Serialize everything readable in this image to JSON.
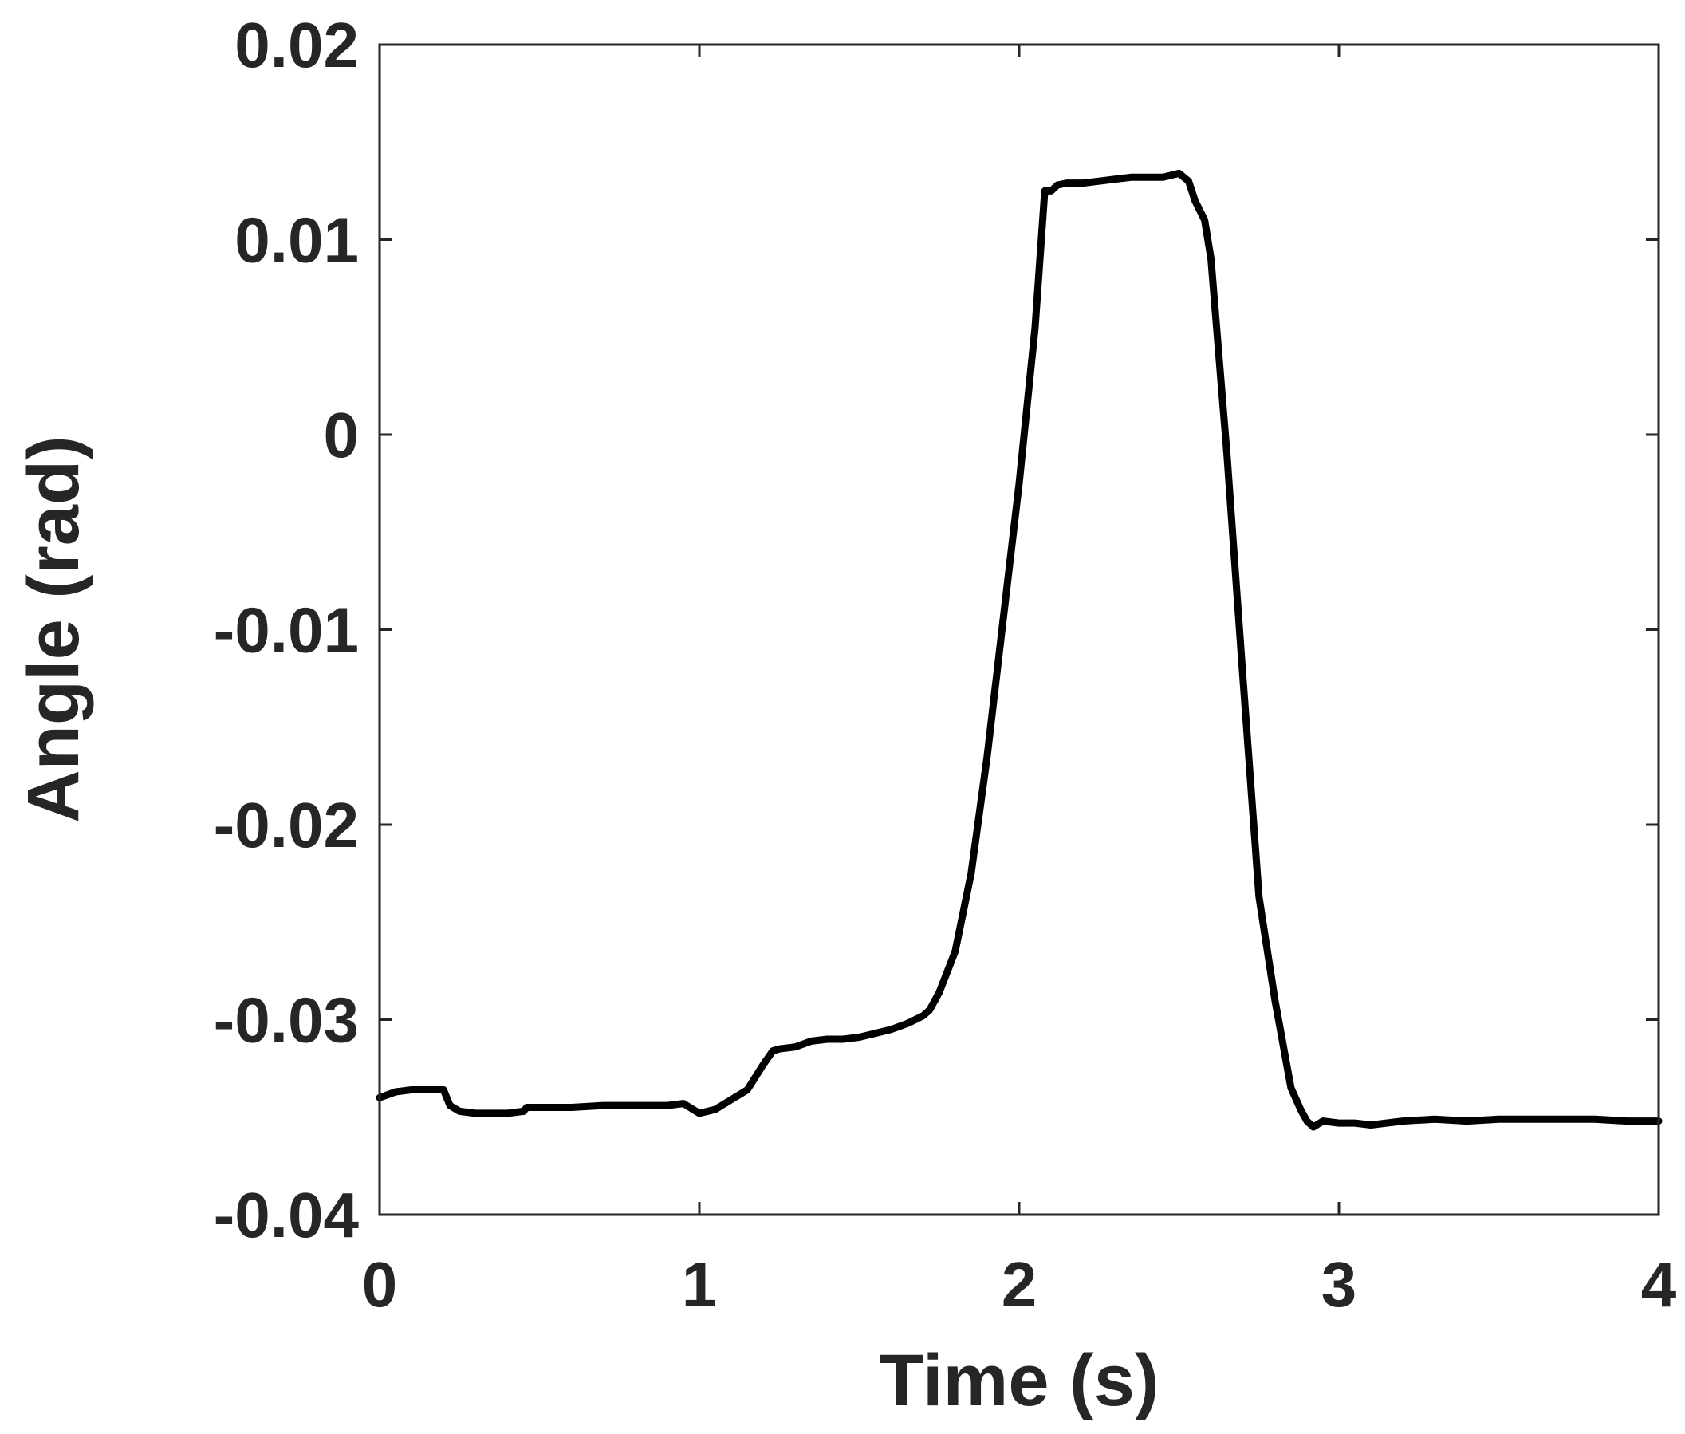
{
  "chart_data": {
    "type": "line",
    "title": "",
    "xlabel": "Time (s)",
    "ylabel": "Angle (rad)",
    "xlim": [
      0,
      4
    ],
    "ylim": [
      -0.04,
      0.02
    ],
    "xticks": [
      "0",
      "1",
      "2",
      "3",
      "4"
    ],
    "yticks": [
      "0.02",
      "0.01",
      "0",
      "-0.01",
      "-0.02",
      "-0.03",
      "-0.04"
    ],
    "grid": false,
    "legend": "none",
    "line_color": "#000000",
    "series": [
      {
        "x": [
          0,
          0.05,
          0.1,
          0.15,
          0.2,
          0.22,
          0.25,
          0.3,
          0.35,
          0.4,
          0.45,
          0.46,
          0.5,
          0.6,
          0.7,
          0.8,
          0.9,
          0.95,
          0.98,
          1.0,
          1.05,
          1.1,
          1.15,
          1.2,
          1.23,
          1.25,
          1.3,
          1.35,
          1.4,
          1.45,
          1.5,
          1.55,
          1.6,
          1.65,
          1.7,
          1.72,
          1.75,
          1.8,
          1.85,
          1.9,
          1.95,
          2.0,
          2.05,
          2.08,
          2.1,
          2.12,
          2.15,
          2.2,
          2.25,
          2.3,
          2.35,
          2.4,
          2.45,
          2.5,
          2.53,
          2.55,
          2.58,
          2.6,
          2.62,
          2.65,
          2.7,
          2.75,
          2.8,
          2.85,
          2.88,
          2.9,
          2.92,
          2.95,
          3.0,
          3.05,
          3.1,
          3.2,
          3.3,
          3.4,
          3.5,
          3.6,
          3.7,
          3.8,
          3.9,
          4.0
        ],
        "y": [
          -0.034,
          -0.0337,
          -0.0336,
          -0.0336,
          -0.0336,
          -0.0344,
          -0.0347,
          -0.0348,
          -0.0348,
          -0.0348,
          -0.0347,
          -0.0345,
          -0.0345,
          -0.0345,
          -0.0344,
          -0.0344,
          -0.0344,
          -0.0343,
          -0.0346,
          -0.0348,
          -0.0346,
          -0.0341,
          -0.0336,
          -0.0323,
          -0.0316,
          -0.0315,
          -0.0314,
          -0.0311,
          -0.031,
          -0.031,
          -0.0309,
          -0.0307,
          -0.0305,
          -0.0302,
          -0.0298,
          -0.0295,
          -0.0286,
          -0.0265,
          -0.0225,
          -0.0165,
          -0.0095,
          -0.0025,
          0.0055,
          0.0125,
          0.0125,
          0.0128,
          0.0129,
          0.0129,
          0.013,
          0.0131,
          0.0132,
          0.0132,
          0.0132,
          0.0134,
          0.013,
          0.012,
          0.011,
          0.009,
          0.005,
          -0.001,
          -0.0125,
          -0.0237,
          -0.029,
          -0.0335,
          -0.0346,
          -0.0352,
          -0.0355,
          -0.0352,
          -0.0353,
          -0.0353,
          -0.0354,
          -0.0352,
          -0.0351,
          -0.0352,
          -0.0351,
          -0.0351,
          -0.0351,
          -0.0351,
          -0.0352,
          -0.0352
        ]
      }
    ]
  }
}
